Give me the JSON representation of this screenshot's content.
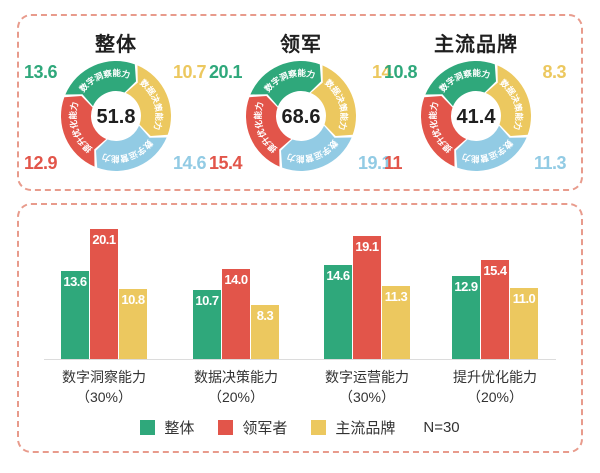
{
  "colors": {
    "green": "#2fa87b",
    "red": "#e2554a",
    "yellow": "#ecc85f",
    "blue": "#92cbe4",
    "panel_border": "#e89b8c",
    "axis_line": "#dcdcdc",
    "text_dark": "#1f1f1f"
  },
  "chart_data": [
    {
      "type": "pie",
      "variant": "donut-cycle-arrows",
      "title": "整体",
      "center_value": "51.8",
      "segments": [
        {
          "label": "数字洞察能力",
          "color": "green",
          "value": 13.6,
          "display": "13.6",
          "label_position": "top-left"
        },
        {
          "label": "数据决策能力",
          "color": "yellow",
          "value": 10.7,
          "display": "10.7",
          "label_position": "top-right"
        },
        {
          "label": "数字运营能力",
          "color": "blue",
          "value": 14.6,
          "display": "14.6",
          "label_position": "bottom-right"
        },
        {
          "label": "提升优化能力",
          "color": "red",
          "value": 12.9,
          "display": "12.9",
          "label_position": "bottom-left"
        }
      ]
    },
    {
      "type": "pie",
      "variant": "donut-cycle-arrows",
      "title": "领军",
      "center_value": "68.6",
      "segments": [
        {
          "label": "数字洞察能力",
          "color": "green",
          "value": 20.1,
          "display": "20.1",
          "label_position": "top-left"
        },
        {
          "label": "数据决策能力",
          "color": "yellow",
          "value": 14,
          "display": "14",
          "label_position": "top-right"
        },
        {
          "label": "数字运营能力",
          "color": "blue",
          "value": 19.1,
          "display": "19.1",
          "label_position": "bottom-right"
        },
        {
          "label": "提升优化能力",
          "color": "red",
          "value": 15.4,
          "display": "15.4",
          "label_position": "bottom-left"
        }
      ]
    },
    {
      "type": "pie",
      "variant": "donut-cycle-arrows",
      "title": "主流品牌",
      "center_value": "41.4",
      "segments": [
        {
          "label": "数字洞察能力",
          "color": "green",
          "value": 10.8,
          "display": "10.8",
          "label_position": "top-left"
        },
        {
          "label": "数据决策能力",
          "color": "yellow",
          "value": 8.3,
          "display": "8.3",
          "label_position": "top-right"
        },
        {
          "label": "数字运营能力",
          "color": "blue",
          "value": 11.3,
          "display": "11.3",
          "label_position": "bottom-right"
        },
        {
          "label": "提升优化能力",
          "color": "red",
          "value": 11,
          "display": "11",
          "label_position": "bottom-left"
        }
      ]
    },
    {
      "type": "bar",
      "categories": [
        {
          "name": "数字洞察能力",
          "weight": "（30%）"
        },
        {
          "name": "数据决策能力",
          "weight": "（20%）"
        },
        {
          "name": "数字运营能力",
          "weight": "（30%）"
        },
        {
          "name": "提升优化能力",
          "weight": "（20%）"
        }
      ],
      "series": [
        {
          "name": "整体",
          "color": "green",
          "values": [
            13.6,
            10.7,
            14.6,
            12.9
          ]
        },
        {
          "name": "领军者",
          "color": "red",
          "values": [
            20.1,
            14.0,
            19.1,
            15.4
          ]
        },
        {
          "name": "主流品牌",
          "color": "yellow",
          "values": [
            10.8,
            8.3,
            11.3,
            11.0
          ]
        }
      ],
      "ylim": [
        0,
        22
      ],
      "grid": false,
      "legend_position": "bottom",
      "legend": {
        "items": [
          {
            "label": "整体",
            "color": "green"
          },
          {
            "label": "领军者",
            "color": "red"
          },
          {
            "label": "主流品牌",
            "color": "yellow"
          }
        ],
        "note": "N=30"
      }
    }
  ]
}
